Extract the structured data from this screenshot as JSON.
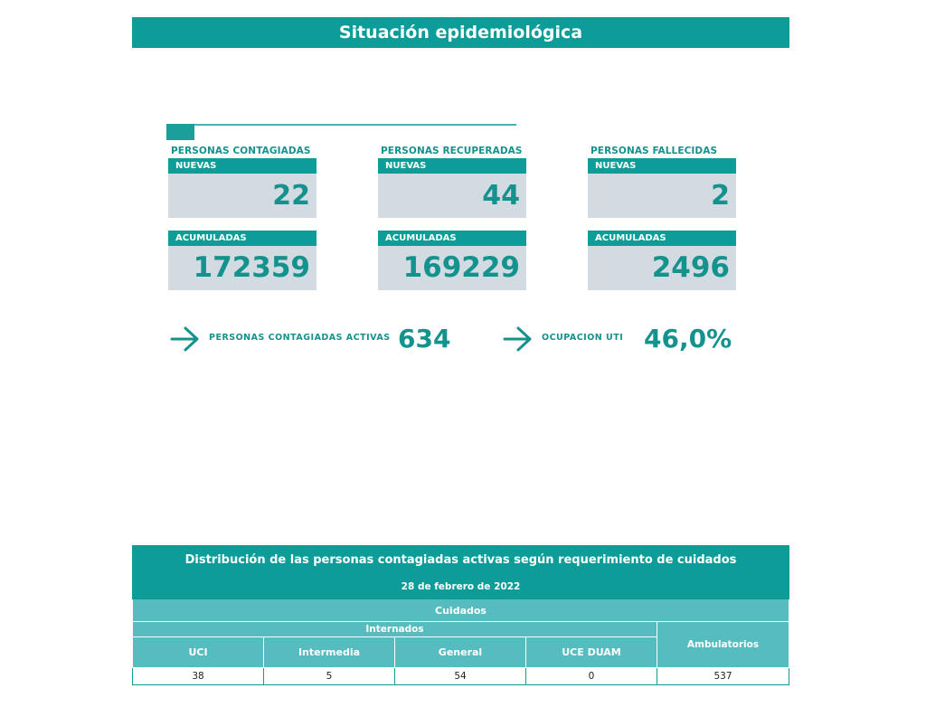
{
  "title": "Situación epidemiológica",
  "stats": {
    "contagiadas": {
      "heading": "PERSONAS CONTAGIADAS",
      "nuevas_label": "NUEVAS",
      "nuevas": "22",
      "acumuladas_label": "ACUMULADAS",
      "acumuladas": "172359"
    },
    "recuperadas": {
      "heading": "PERSONAS RECUPERADAS",
      "nuevas_label": "NUEVAS",
      "nuevas": "44",
      "acumuladas_label": "ACUMULADAS",
      "acumuladas": "169229"
    },
    "fallecidas": {
      "heading": "PERSONAS FALLECIDAS",
      "nuevas_label": "NUEVAS",
      "nuevas": "2",
      "acumuladas_label": "ACUMULADAS",
      "acumuladas": "2496"
    }
  },
  "kpis": {
    "activas": {
      "icon": "arrow-right-icon",
      "label": "PERSONAS CONTAGIADAS ACTIVAS",
      "value": "634"
    },
    "uti": {
      "icon": "arrow-right-icon",
      "label": "OCUPACION UTI",
      "value": "46,0%"
    }
  },
  "distribution": {
    "title": "Distribución de las personas contagiadas activas según requerimiento de cuidados",
    "date": "28 de febrero de 2022",
    "group_header": "Cuidados",
    "internados_header": "Internados",
    "ambulatorios_header": "Ambulatorios",
    "columns": [
      "UCI",
      "Intermedia",
      "General",
      "UCE DUAM"
    ],
    "values": [
      "38",
      "5",
      "54",
      "0",
      "537"
    ]
  },
  "colors": {
    "accent": "#0e9c98",
    "header_light": "#56bcc0",
    "card_bg": "#d2dbe2",
    "text_accent": "#14928e"
  }
}
